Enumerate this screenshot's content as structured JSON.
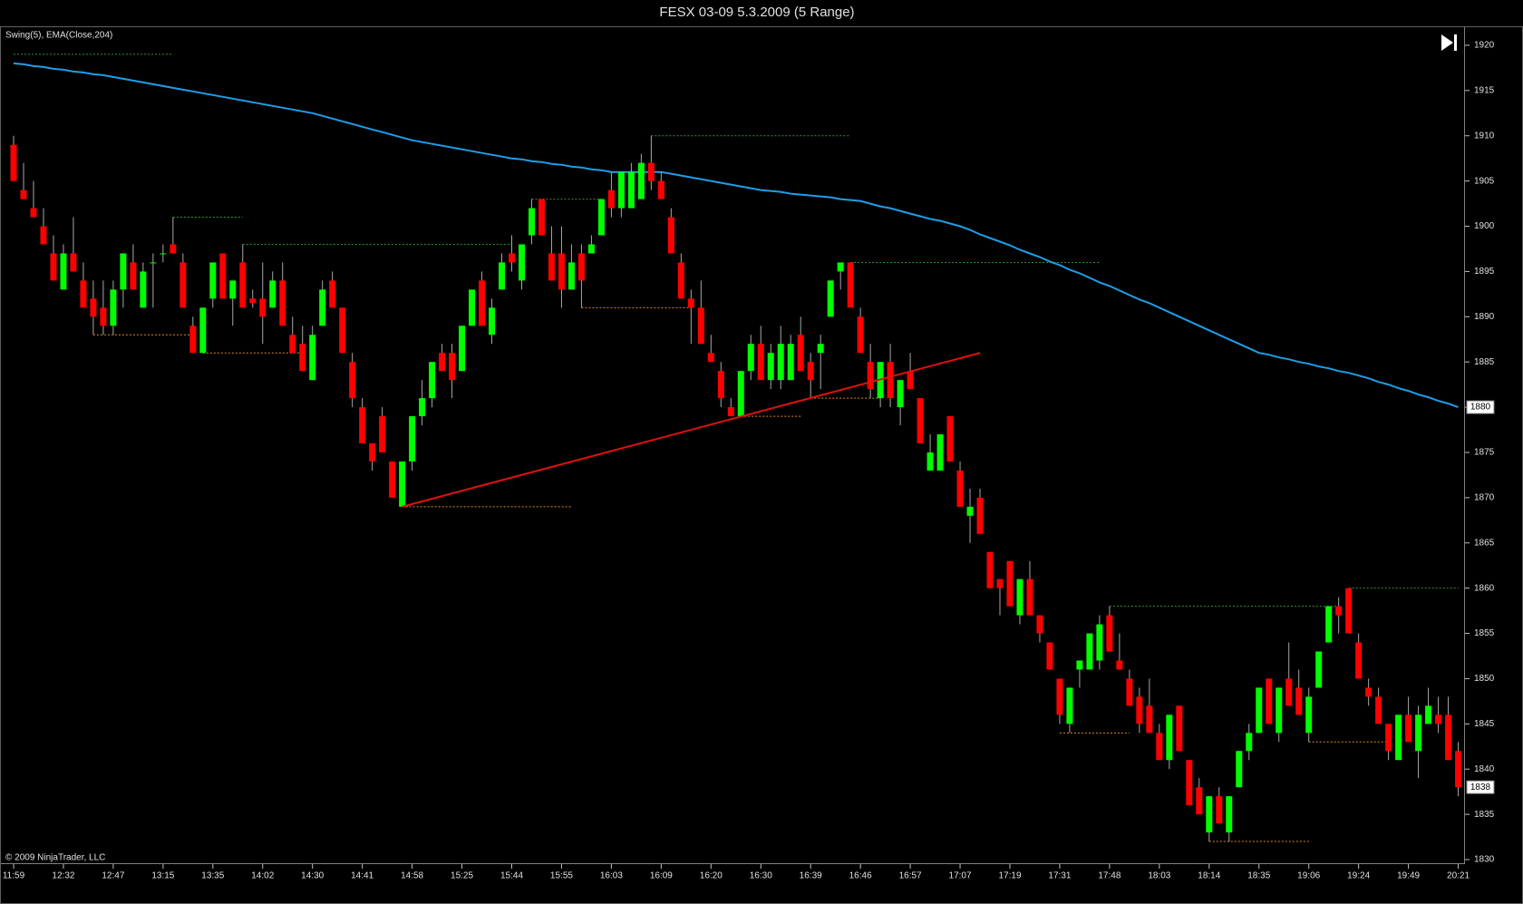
{
  "chart_data": {
    "type": "candlestick",
    "title": "FESX 03-09  5.3.2009 (5 Range)",
    "indicator_label": "Swing(5), EMA(Close,204)",
    "copyright": "© 2009 NinjaTrader, LLC",
    "categories": [
      "11:59",
      null,
      null,
      null,
      null,
      "12:32",
      null,
      null,
      null,
      null,
      "12:47",
      null,
      null,
      null,
      null,
      "13:15",
      null,
      null,
      null,
      null,
      "13:35",
      null,
      null,
      null,
      null,
      "14:02",
      null,
      null,
      null,
      null,
      "14:30",
      null,
      null,
      null,
      null,
      "14:41",
      null,
      null,
      null,
      null,
      "14:58",
      null,
      null,
      null,
      null,
      "15:25",
      null,
      null,
      null,
      null,
      "15:44",
      null,
      null,
      null,
      null,
      "15:55",
      null,
      null,
      null,
      null,
      "16:03",
      null,
      null,
      null,
      null,
      "16:09",
      null,
      null,
      null,
      null,
      "16:20",
      null,
      null,
      null,
      null,
      "16:30",
      null,
      null,
      null,
      null,
      "16:39",
      null,
      null,
      null,
      null,
      "16:46",
      null,
      null,
      null,
      null,
      "16:57",
      null,
      null,
      null,
      null,
      "17:07",
      null,
      null,
      null,
      null,
      "17:19",
      null,
      null,
      null,
      null,
      "17:31",
      null,
      null,
      null,
      null,
      "17:48",
      null,
      null,
      null,
      null,
      "18:03",
      null,
      null,
      null,
      null,
      "18:14",
      null,
      null,
      null,
      null,
      "18:35",
      null,
      null,
      null,
      null,
      "19:06",
      null,
      null,
      null,
      null,
      "19:24",
      null,
      null,
      null,
      null,
      "19:49",
      null,
      null,
      null,
      null,
      "20:21"
    ],
    "open": [
      1909,
      1904,
      1902,
      1900,
      1897,
      1893,
      1897,
      1894,
      1892,
      1891,
      1889,
      1893,
      1896,
      1891,
      1896,
      1897,
      1898,
      1896,
      1889,
      1886,
      1892,
      1897,
      1892,
      1896,
      1892,
      1892,
      1891,
      1894,
      1888,
      1887,
      1883,
      1889,
      1894,
      1891,
      1885,
      1880,
      1876,
      1879,
      1874,
      1869,
      1874,
      1879,
      1881,
      1886,
      1886,
      1884,
      1889,
      1894,
      1888,
      1893,
      1897,
      1894,
      1899,
      1903,
      1897,
      1897,
      1893,
      1897,
      1897,
      1899,
      1904,
      1902,
      1902,
      1903,
      1907,
      1905,
      1901,
      1896,
      1892,
      1891,
      1886,
      1884,
      1880,
      1879,
      1884,
      1887,
      1883,
      1883,
      1883,
      1888,
      1885,
      1886,
      1890,
      1895,
      1896,
      1890,
      1885,
      1881,
      1885,
      1880,
      1884,
      1881,
      1873,
      1873,
      1879,
      1873,
      1868,
      1870,
      1864,
      1861,
      1863,
      1857,
      1861,
      1857,
      1854,
      1850,
      1845,
      1851,
      1851,
      1852,
      1857,
      1852,
      1850,
      1848,
      1847,
      1844,
      1841,
      1847,
      1841,
      1838,
      1833,
      1837,
      1833,
      1838,
      1842,
      1844,
      1850,
      1844,
      1850,
      1849,
      1844,
      1849,
      1854,
      1858,
      1860,
      1854,
      1849,
      1848,
      1845,
      1841,
      1846,
      1842,
      1845,
      1846,
      1846,
      1842
    ],
    "high": [
      1910,
      1907,
      1905,
      1902,
      1899,
      1898,
      1901,
      1896,
      1894,
      1894,
      1894,
      1897,
      1898,
      1896,
      1897,
      1898,
      1901,
      1897,
      1890,
      1891,
      1896,
      1897,
      1894,
      1898,
      1893,
      1896,
      1895,
      1896,
      1890,
      1889,
      1889,
      1894,
      1895,
      1891,
      1886,
      1881,
      1876,
      1880,
      1874,
      1874,
      1879,
      1883,
      1885,
      1887,
      1887,
      1889,
      1893,
      1895,
      1892,
      1897,
      1899,
      1898,
      1903,
      1903,
      1900,
      1900,
      1898,
      1898,
      1899,
      1903,
      1906,
      1906,
      1907,
      1908,
      1910,
      1906,
      1902,
      1897,
      1893,
      1894,
      1888,
      1885,
      1881,
      1884,
      1888,
      1889,
      1887,
      1889,
      1888,
      1890,
      1886,
      1888,
      1894,
      1896,
      1896,
      1891,
      1887,
      1885,
      1887,
      1883,
      1886,
      1881,
      1877,
      1877,
      1879,
      1874,
      1871,
      1871,
      1864,
      1861,
      1863,
      1861,
      1863,
      1857,
      1854,
      1850,
      1849,
      1852,
      1855,
      1857,
      1858,
      1855,
      1851,
      1849,
      1850,
      1845,
      1846,
      1847,
      1841,
      1839,
      1837,
      1838,
      1837,
      1842,
      1845,
      1849,
      1850,
      1849,
      1854,
      1851,
      1849,
      1853,
      1858,
      1859,
      1860,
      1855,
      1850,
      1849,
      1845,
      1846,
      1848,
      1847,
      1849,
      1848,
      1848,
      1843
    ],
    "low": [
      1905,
      1903,
      1901,
      1898,
      1894,
      1893,
      1895,
      1891,
      1888,
      1888,
      1888,
      1891,
      1893,
      1891,
      1891,
      1896,
      1897,
      1891,
      1886,
      1886,
      1891,
      1892,
      1889,
      1891,
      1891,
      1887,
      1891,
      1889,
      1886,
      1884,
      1883,
      1889,
      1891,
      1886,
      1880,
      1876,
      1873,
      1875,
      1870,
      1869,
      1873,
      1878,
      1880,
      1884,
      1881,
      1884,
      1889,
      1889,
      1887,
      1893,
      1895,
      1893,
      1898,
      1899,
      1894,
      1891,
      1893,
      1891,
      1897,
      1899,
      1901,
      1901,
      1902,
      1903,
      1904,
      1903,
      1897,
      1892,
      1887,
      1887,
      1885,
      1880,
      1879,
      1879,
      1883,
      1883,
      1882,
      1882,
      1883,
      1884,
      1881,
      1882,
      1890,
      1893,
      1891,
      1886,
      1881,
      1880,
      1880,
      1878,
      1882,
      1876,
      1873,
      1873,
      1874,
      1869,
      1865,
      1866,
      1860,
      1857,
      1858,
      1856,
      1857,
      1854,
      1851,
      1845,
      1844,
      1849,
      1851,
      1851,
      1853,
      1851,
      1847,
      1844,
      1844,
      1841,
      1840,
      1842,
      1836,
      1835,
      1832,
      1834,
      1832,
      1838,
      1841,
      1844,
      1845,
      1843,
      1847,
      1846,
      1843,
      1849,
      1854,
      1855,
      1855,
      1850,
      1847,
      1845,
      1841,
      1841,
      1843,
      1839,
      1845,
      1844,
      1841,
      1837
    ],
    "close": [
      1905,
      1903,
      1901,
      1898,
      1894,
      1897,
      1895,
      1891,
      1890,
      1889,
      1893,
      1897,
      1893,
      1895,
      1896,
      1897,
      1897,
      1891,
      1886,
      1891,
      1896,
      1892,
      1894,
      1891,
      1891.5,
      1890,
      1894,
      1889,
      1886,
      1884,
      1888,
      1893,
      1891,
      1886,
      1881,
      1876,
      1874,
      1875,
      1870,
      1874,
      1879,
      1881,
      1885,
      1884,
      1883,
      1889,
      1893,
      1889,
      1891,
      1896,
      1896,
      1898,
      1902,
      1899,
      1894,
      1893,
      1896,
      1894,
      1898,
      1903,
      1902,
      1906,
      1906,
      1907,
      1905,
      1903,
      1897,
      1892,
      1891,
      1887,
      1885,
      1881,
      1879,
      1884,
      1887,
      1883,
      1886,
      1887,
      1887,
      1884,
      1883,
      1887,
      1894,
      1896,
      1891,
      1886,
      1882,
      1885,
      1881,
      1883,
      1882,
      1876,
      1875,
      1877,
      1874,
      1869,
      1869,
      1866,
      1860,
      1860,
      1858,
      1861,
      1857,
      1855,
      1851,
      1846,
      1849,
      1852,
      1855,
      1856,
      1853,
      1851,
      1847,
      1845,
      1844,
      1841,
      1846,
      1842,
      1836,
      1835,
      1837,
      1834,
      1837,
      1842,
      1844,
      1849,
      1845,
      1849,
      1847,
      1846,
      1848,
      1853,
      1858,
      1857,
      1855,
      1850,
      1848,
      1845,
      1842,
      1846,
      1843,
      1846,
      1847,
      1845,
      1841,
      1838
    ],
    "up_color": "#00ff00",
    "down_color": "#ff0000",
    "wick_color": "#a8a8a8",
    "ema": {
      "color": "#1e9ee8",
      "values": [
        1918,
        1917.9,
        1917.7,
        1917.6,
        1917.4,
        1917.3,
        1917.1,
        1917,
        1916.8,
        1916.7,
        1916.5,
        1916.3,
        1916.1,
        1915.9,
        1915.7,
        1915.5,
        1915.3,
        1915.1,
        1914.9,
        1914.7,
        1914.5,
        1914.3,
        1914.1,
        1913.9,
        1913.7,
        1913.5,
        1913.3,
        1913.1,
        1912.9,
        1912.7,
        1912.5,
        1912.2,
        1911.9,
        1911.6,
        1911.3,
        1911,
        1910.7,
        1910.4,
        1910.1,
        1909.8,
        1909.5,
        1909.3,
        1909.1,
        1908.9,
        1908.7,
        1908.5,
        1908.3,
        1908.1,
        1907.9,
        1907.7,
        1907.5,
        1907.4,
        1907.2,
        1907.1,
        1906.9,
        1906.8,
        1906.6,
        1906.5,
        1906.3,
        1906.2,
        1906,
        1906,
        1906,
        1906,
        1906,
        1906,
        1905.8,
        1905.6,
        1905.4,
        1905.2,
        1905,
        1904.8,
        1904.6,
        1904.4,
        1904.2,
        1904,
        1903.9,
        1903.8,
        1903.6,
        1903.5,
        1903.4,
        1903.3,
        1903.2,
        1903,
        1902.9,
        1902.8,
        1902.5,
        1902.2,
        1902,
        1901.7,
        1901.4,
        1901.1,
        1900.8,
        1900.6,
        1900.3,
        1900,
        1899.6,
        1899.1,
        1898.7,
        1898.3,
        1897.9,
        1897.4,
        1897,
        1896.6,
        1896.1,
        1895.7,
        1895.2,
        1894.8,
        1894.3,
        1893.8,
        1893.4,
        1892.9,
        1892.4,
        1891.9,
        1891.5,
        1891,
        1890.5,
        1890,
        1889.5,
        1889,
        1888.5,
        1888,
        1887.5,
        1887,
        1886.5,
        1886,
        1885.8,
        1885.5,
        1885.3,
        1885,
        1884.8,
        1884.5,
        1884.3,
        1884,
        1883.8,
        1883.5,
        1883.2,
        1882.8,
        1882.5,
        1882.1,
        1881.8,
        1881.4,
        1881.1,
        1880.7,
        1880.4,
        1880
      ]
    },
    "swings": {
      "high_color": "#2e9a2e",
      "low_color": "#e08a20",
      "highs": [
        {
          "from": 0,
          "to": 16,
          "value": 1919
        },
        {
          "from": 16,
          "to": 23,
          "value": 1901
        },
        {
          "from": 23,
          "to": 50,
          "value": 1898
        },
        {
          "from": 52,
          "to": 59,
          "value": 1903
        },
        {
          "from": 64,
          "to": 84,
          "value": 1910
        },
        {
          "from": 84,
          "to": 109,
          "value": 1896
        },
        {
          "from": 110,
          "to": 133,
          "value": 1858
        },
        {
          "from": 134,
          "to": 145,
          "value": 1860
        }
      ],
      "lows": [
        {
          "from": 8,
          "to": 18,
          "value": 1888
        },
        {
          "from": 19,
          "to": 29,
          "value": 1886
        },
        {
          "from": 39,
          "to": 56,
          "value": 1869
        },
        {
          "from": 57,
          "to": 68,
          "value": 1891
        },
        {
          "from": 73,
          "to": 79,
          "value": 1879
        },
        {
          "from": 80,
          "to": 87,
          "value": 1881
        },
        {
          "from": 105,
          "to": 112,
          "value": 1844
        },
        {
          "from": 120,
          "to": 130,
          "value": 1832
        },
        {
          "from": 130,
          "to": 138,
          "value": 1843
        }
      ]
    },
    "trendline": {
      "from": [
        39,
        1869
      ],
      "to": [
        97,
        1886
      ],
      "color": "#e01010"
    },
    "ylim": [
      1829.5,
      1922
    ],
    "yticks": [
      1830,
      1835,
      1840,
      1845,
      1850,
      1855,
      1860,
      1865,
      1870,
      1875,
      1880,
      1885,
      1890,
      1895,
      1900,
      1905,
      1910,
      1915,
      1920
    ]
  }
}
